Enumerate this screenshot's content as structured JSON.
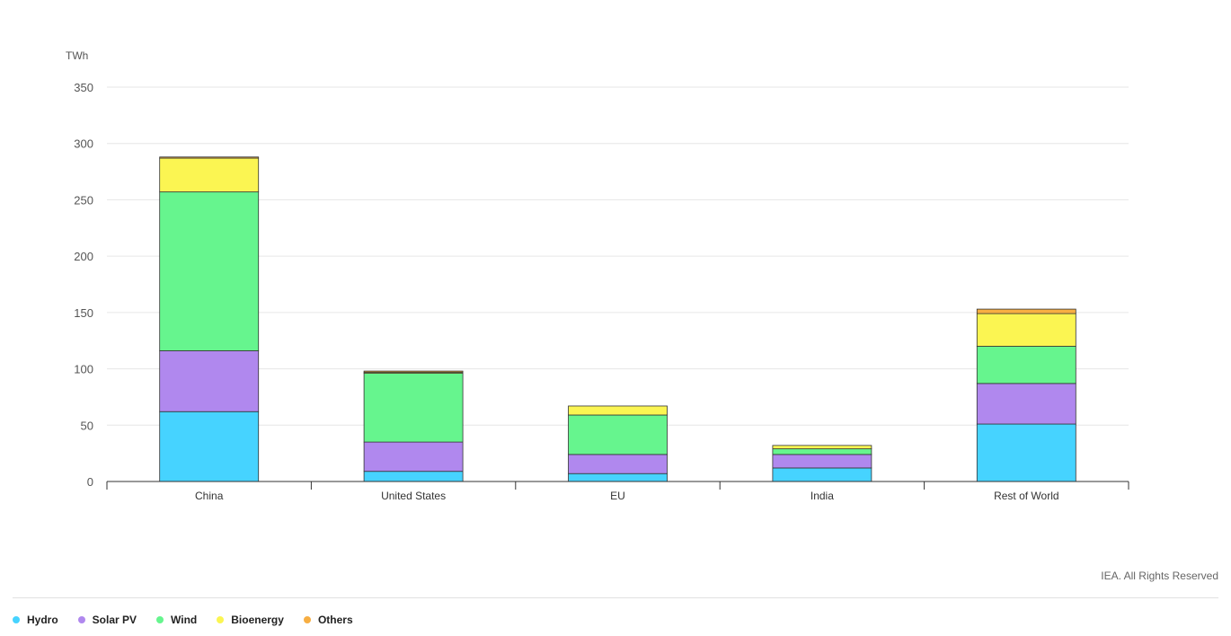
{
  "chart_data": {
    "type": "bar",
    "stacked": true,
    "unit": "TWh",
    "categories": [
      "China",
      "United States",
      "EU",
      "India",
      "Rest of World"
    ],
    "series": [
      {
        "name": "Hydro",
        "color": "#46d3ff",
        "values": [
          62,
          9,
          7,
          12,
          51
        ]
      },
      {
        "name": "Solar PV",
        "color": "#b088ee",
        "values": [
          54,
          26,
          17,
          12,
          36
        ]
      },
      {
        "name": "Wind",
        "color": "#66f58e",
        "values": [
          141,
          61,
          35,
          5,
          33
        ]
      },
      {
        "name": "Bioenergy",
        "color": "#fbf552",
        "values": [
          30,
          1,
          8,
          3,
          29
        ]
      },
      {
        "name": "Others",
        "color": "#f7ae42",
        "values": [
          1,
          1,
          0,
          0,
          4
        ]
      }
    ],
    "ylim": [
      0,
      350
    ],
    "yticks": [
      0,
      50,
      100,
      150,
      200,
      250,
      300,
      350
    ],
    "grid": true,
    "legend_position": "bottom-left"
  },
  "credit": "IEA. All Rights Reserved"
}
